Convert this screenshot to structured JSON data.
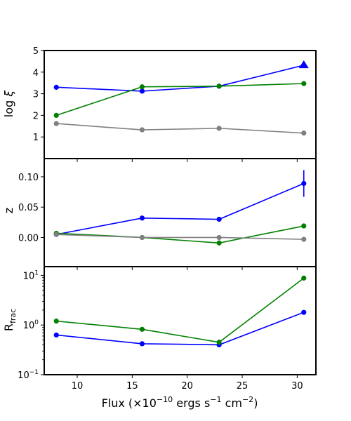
{
  "chart_data": [
    {
      "type": "line",
      "panel": "top",
      "ylabel": "log ξ",
      "yscale": "linear",
      "ylim": [
        0,
        5
      ],
      "yticks": [
        1,
        2,
        3,
        4,
        5
      ],
      "ytick_labels": [
        "1",
        "2",
        "3",
        "4",
        "5"
      ],
      "x": [
        8.1,
        15.9,
        22.9,
        30.6
      ],
      "series": [
        {
          "color": "#0000ff",
          "values": [
            3.3,
            3.12,
            3.35,
            4.32
          ],
          "last_point_marker": "triangle"
        },
        {
          "color": "#008000",
          "values": [
            2.0,
            3.32,
            3.35,
            3.47
          ]
        },
        {
          "color": "#808080",
          "values": [
            1.62,
            1.33,
            1.4,
            1.18
          ]
        }
      ]
    },
    {
      "type": "line",
      "panel": "middle",
      "ylabel": "z",
      "yscale": "linear",
      "ylim": [
        -0.048,
        0.13
      ],
      "yticks": [
        0.0,
        0.05,
        0.1
      ],
      "ytick_labels": [
        "0.00",
        "0.05",
        "0.10"
      ],
      "x": [
        8.1,
        15.9,
        22.9,
        30.6
      ],
      "series": [
        {
          "color": "#0000ff",
          "values": [
            0.005,
            0.032,
            0.03,
            0.089
          ],
          "errors": [
            0,
            0,
            0,
            0.022
          ]
        },
        {
          "color": "#008000",
          "values": [
            0.007,
            0.0,
            -0.009,
            0.019
          ]
        },
        {
          "color": "#808080",
          "values": [
            0.005,
            0.0,
            0.0,
            -0.003
          ],
          "errors": [
            0,
            0,
            0.004,
            0
          ]
        }
      ]
    },
    {
      "type": "line",
      "panel": "bottom",
      "ylabel": "R_frac",
      "yscale": "log",
      "ylim": [
        0.1,
        15
      ],
      "yticks": [
        0.1,
        1,
        10
      ],
      "ytick_labels": [
        "10",
        "10",
        "10"
      ],
      "ytick_exponents": [
        "−1",
        "0",
        "1"
      ],
      "x": [
        8.1,
        15.9,
        22.9,
        30.6
      ],
      "series": [
        {
          "color": "#0000ff",
          "values": [
            0.63,
            0.42,
            0.4,
            1.8
          ]
        },
        {
          "color": "#008000",
          "values": [
            1.2,
            0.82,
            0.45,
            8.8
          ]
        }
      ]
    }
  ],
  "xaxis": {
    "xlim": [
      7,
      31.7
    ],
    "xticks": [
      10,
      15,
      20,
      25,
      30
    ],
    "xtick_labels": [
      "10",
      "15",
      "20",
      "25",
      "30"
    ],
    "xlabel": {
      "prefix": "Flux (×10",
      "exp1": "−10",
      "middle": " ergs s",
      "exp2": "−1",
      "middle2": " cm",
      "exp3": "−2",
      "suffix": ")"
    }
  },
  "ylabels": {
    "top_main": "log ",
    "top_symbol": "ξ",
    "middle": "z",
    "bottom_main": "R",
    "bottom_sub": "frac"
  }
}
